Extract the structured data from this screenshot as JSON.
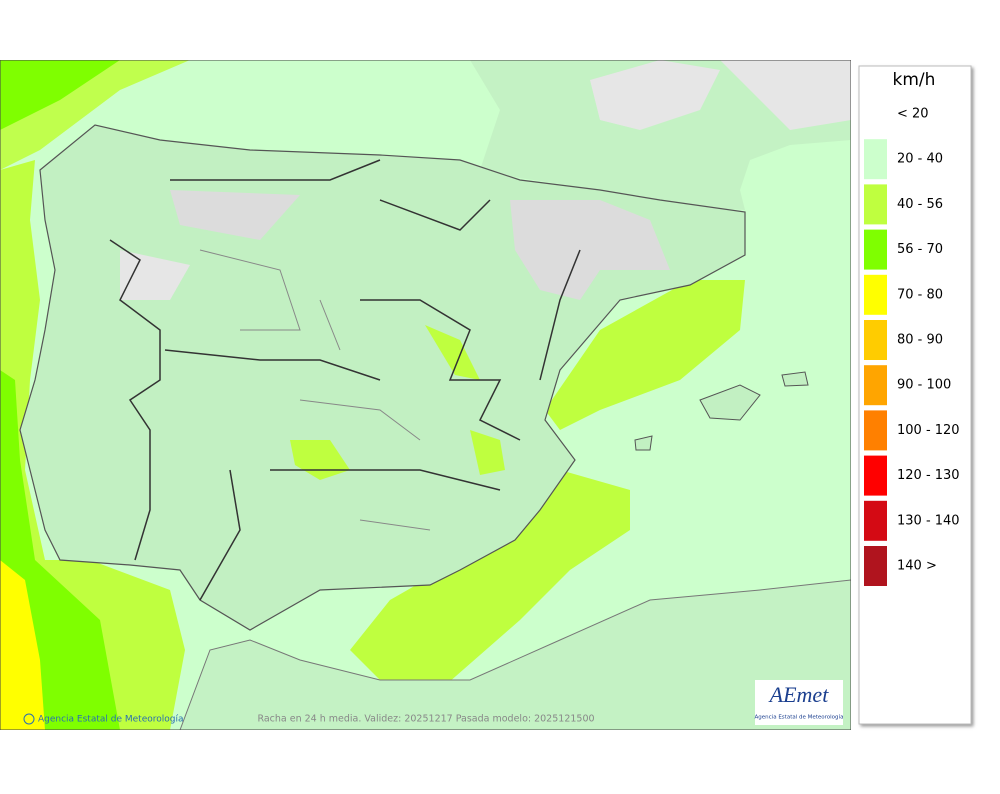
{
  "legend": {
    "unit": "km/h",
    "items": [
      {
        "label": "< 20",
        "color": "#ffffff"
      },
      {
        "label": "20 - 40",
        "color": "#ccffcc"
      },
      {
        "label": "40 - 56",
        "color": "#bfff3f"
      },
      {
        "label": "56 - 70",
        "color": "#7fff00"
      },
      {
        "label": "70 - 80",
        "color": "#ffff00"
      },
      {
        "label": "80 - 90",
        "color": "#ffcc00"
      },
      {
        "label": "90 - 100",
        "color": "#ffa500"
      },
      {
        "label": "100 - 120",
        "color": "#ff8000"
      },
      {
        "label": "120 - 130",
        "color": "#ff0000"
      },
      {
        "label": "130 - 140",
        "color": "#d40a14"
      },
      {
        "label": "140 >",
        "color": "#b0141e"
      }
    ]
  },
  "footer": {
    "credit": "Agencia Estatal de Meteorología",
    "caption": "Racha en 24 h media. Validez: 20251217 Pasada modelo: 2025121500"
  },
  "logo": {
    "text": "AEmet",
    "subtitle": "Agencia Estatal de Meteorología"
  }
}
